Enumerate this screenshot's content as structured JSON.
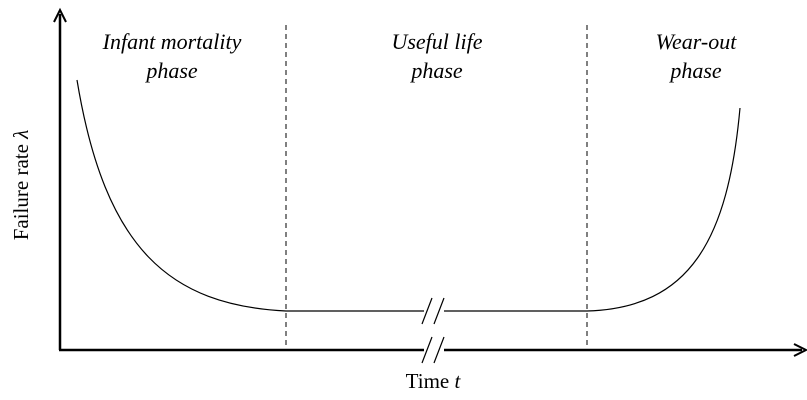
{
  "phases": [
    {
      "lines": [
        "Infant mortality",
        "phase"
      ]
    },
    {
      "lines": [
        "Useful life",
        "phase"
      ]
    },
    {
      "lines": [
        "Wear-out",
        "phase"
      ]
    }
  ],
  "axes": {
    "y_label": {
      "text": "Failure rate",
      "symbol": "λ"
    },
    "x_label": {
      "text": "Time",
      "symbol": "t"
    }
  }
}
